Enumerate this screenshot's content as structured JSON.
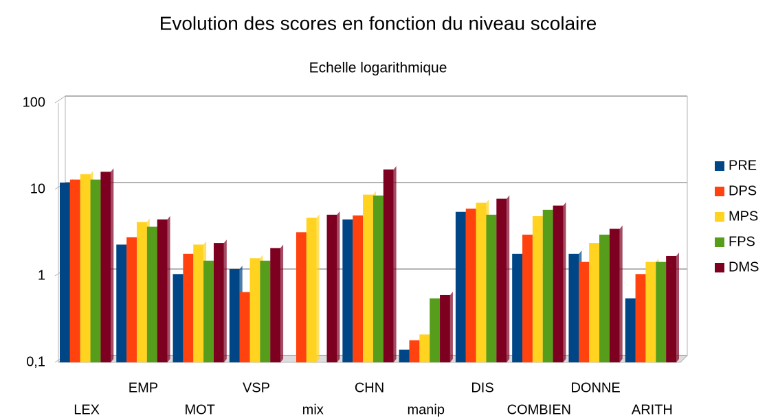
{
  "chart_data": {
    "type": "bar",
    "title": "Evolution des scores en fonction du niveau scolaire",
    "subtitle": "Echelle logarithmique",
    "categories": [
      "LEX",
      "EMP",
      "MOT",
      "VSP",
      "mix",
      "CHN",
      "manip",
      "DIS",
      "COMBIEN",
      "DONNE",
      "ARITH"
    ],
    "series": [
      {
        "name": "PRE",
        "color": "#004586",
        "values": [
          12,
          2.3,
          1.05,
          1.2,
          null,
          4.5,
          0.14,
          5.5,
          1.8,
          1.8,
          0.55
        ]
      },
      {
        "name": "DPS",
        "color": "#ff420e",
        "values": [
          13,
          2.8,
          1.8,
          0.65,
          3.2,
          5,
          0.18,
          6,
          3,
          1.45,
          1.05
        ]
      },
      {
        "name": "MPS",
        "color": "#ffd320",
        "values": [
          15,
          4.2,
          2.3,
          1.6,
          4.7,
          8.7,
          0.21,
          7,
          4.9,
          2.4,
          1.45
        ]
      },
      {
        "name": "FPS",
        "color": "#579d1c",
        "values": [
          13,
          3.7,
          1.5,
          1.5,
          null,
          8.5,
          0.55,
          5.1,
          5.8,
          3,
          1.45
        ]
      },
      {
        "name": "DMS",
        "color": "#7e0021",
        "values": [
          16,
          4.5,
          2.4,
          2.1,
          5.1,
          17,
          0.6,
          7.8,
          6.5,
          3.5,
          1.7
        ]
      }
    ],
    "ylim": [
      0.1,
      100
    ],
    "yticks": [
      {
        "value": 0.1,
        "label": "0,1"
      },
      1,
      10,
      100
    ],
    "log_y": true,
    "grid": true,
    "legend": "right"
  }
}
